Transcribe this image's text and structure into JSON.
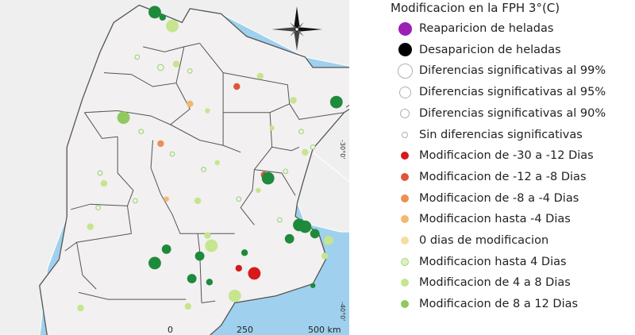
{
  "legend": {
    "title": "Modificacion en la FPH 3°(C)",
    "items": [
      {
        "label": "Reaparicion de heladas",
        "name": "reaparicion-heladas",
        "fill": "#9b20b4",
        "stroke": "#9b20b4",
        "size": 17
      },
      {
        "label": "Desaparicion de heladas",
        "name": "desaparicion-heladas",
        "fill": "#000000",
        "stroke": "#000000",
        "size": 17
      },
      {
        "label": "Diferencias significativas al 99%",
        "name": "dif-sig-99",
        "fill": "#ffffff",
        "stroke": "#b0b0b0",
        "size": 19
      },
      {
        "label": "Diferencias significativas al 95%",
        "name": "dif-sig-95",
        "fill": "#ffffff",
        "stroke": "#b0b0b0",
        "size": 15
      },
      {
        "label": "Diferencias significativas al 90%",
        "name": "dif-sig-90",
        "fill": "#ffffff",
        "stroke": "#b0b0b0",
        "size": 12
      },
      {
        "label": "Sin diferencias significativas",
        "name": "sin-diferencias",
        "fill": "#ffffff",
        "stroke": "#b0b0b0",
        "size": 8
      },
      {
        "label": "Modificacion de -30 a -12 Dias",
        "name": "mod-30-12",
        "fill": "#d7191c",
        "stroke": "#d7191c",
        "size": 10
      },
      {
        "label": "Modificacion de -12 a -8 Dias",
        "name": "mod-12-8",
        "fill": "#e0553a",
        "stroke": "#e0553a",
        "size": 10
      },
      {
        "label": "Modificacion de -8 a -4 Dias",
        "name": "mod-8-4",
        "fill": "#ec8f55",
        "stroke": "#ec8f55",
        "size": 10
      },
      {
        "label": "Modificacion hasta -4 Dias",
        "name": "mod-hasta-neg4",
        "fill": "#f2b870",
        "stroke": "#f2b870",
        "size": 10
      },
      {
        "label": "0 dias de modificacion",
        "name": "mod-0",
        "fill": "#f8dca2",
        "stroke": "#f8dca2",
        "size": 10
      },
      {
        "label": "Modificacion hasta 4 Dias",
        "name": "mod-hasta-4",
        "fill": "#ddf0bd",
        "stroke": "#a9d488",
        "size": 10
      },
      {
        "label": "Modificacion de 4 a 8 Dias",
        "name": "mod-4-8",
        "fill": "#c5e58e",
        "stroke": "#c5e58e",
        "size": 10
      },
      {
        "label": "Modificacion de 8 a 12 Dias",
        "name": "mod-8-12",
        "fill": "#8fc95f",
        "stroke": "#8fc95f",
        "size": 10
      }
    ]
  },
  "map": {
    "lat_labels": [
      "-30°0'",
      "-40°0'"
    ],
    "scale_labels": [
      "0",
      "250",
      "500 km"
    ]
  },
  "colors": {
    "sea": "#9fd1ee",
    "land": "#f2f0f0",
    "outside_land": "#efefef",
    "border": "#555555",
    "dark_green": "#1e8a3c"
  },
  "stations": [
    {
      "cat": "dark",
      "size": "l",
      "lon": -65.7,
      "lat": -22.2
    },
    {
      "cat": "c48",
      "size": "l",
      "lon": -64.8,
      "lat": -23.0
    },
    {
      "cat": "dark",
      "size": "s",
      "lon": -65.3,
      "lat": -22.5
    },
    {
      "cat": "c04",
      "size": "xs",
      "lon": -66.6,
      "lat": -24.8
    },
    {
      "cat": "c04",
      "size": "s",
      "lon": -65.4,
      "lat": -25.4
    },
    {
      "cat": "c48",
      "size": "s",
      "lon": -64.6,
      "lat": -25.2
    },
    {
      "cat": "c04",
      "size": "xs",
      "lon": -63.9,
      "lat": -25.6
    },
    {
      "cat": "m12_8",
      "size": "s",
      "lon": -61.5,
      "lat": -26.5
    },
    {
      "cat": "c48",
      "size": "s",
      "lon": -60.3,
      "lat": -25.9
    },
    {
      "cat": "dark",
      "size": "l",
      "lon": -54.6,
      "lat": -25.6
    },
    {
      "cat": "c48",
      "size": "s",
      "lon": -55.4,
      "lat": -26.0
    },
    {
      "cat": "dark",
      "size": "l",
      "lon": -56.4,
      "lat": -27.4
    },
    {
      "cat": "c48",
      "size": "s",
      "lon": -58.6,
      "lat": -27.3
    },
    {
      "cat": "c812",
      "size": "l",
      "lon": -67.3,
      "lat": -28.3
    },
    {
      "cat": "m4",
      "size": "s",
      "lon": -63.9,
      "lat": -27.5
    },
    {
      "cat": "c48",
      "size": "xs",
      "lon": -63.0,
      "lat": -27.9
    },
    {
      "cat": "c48",
      "size": "xs",
      "lon": -59.7,
      "lat": -28.9
    },
    {
      "cat": "c04",
      "size": "xs",
      "lon": -66.4,
      "lat": -29.1
    },
    {
      "cat": "m8_4",
      "size": "s",
      "lon": -65.4,
      "lat": -29.8
    },
    {
      "cat": "c04",
      "size": "xs",
      "lon": -64.8,
      "lat": -30.4
    },
    {
      "cat": "c48",
      "size": "s",
      "lon": -58.0,
      "lat": -30.3
    },
    {
      "cat": "c04",
      "size": "xs",
      "lon": -57.6,
      "lat": -30.0
    },
    {
      "cat": "c04",
      "size": "xs",
      "lon": -58.2,
      "lat": -29.1
    },
    {
      "cat": "c48",
      "size": "xs",
      "lon": -62.5,
      "lat": -30.9
    },
    {
      "cat": "c04",
      "size": "xs",
      "lon": -63.2,
      "lat": -31.3
    },
    {
      "cat": "m12_8",
      "size": "s",
      "lon": -60.1,
      "lat": -31.6
    },
    {
      "cat": "dark",
      "size": "l",
      "lon": -59.9,
      "lat": -31.8
    },
    {
      "cat": "c04",
      "size": "xs",
      "lon": -59.0,
      "lat": -31.4
    },
    {
      "cat": "c04",
      "size": "xs",
      "lon": -68.5,
      "lat": -31.5
    },
    {
      "cat": "c48",
      "size": "s",
      "lon": -68.3,
      "lat": -32.1
    },
    {
      "cat": "c04",
      "size": "xs",
      "lon": -66.7,
      "lat": -33.1
    },
    {
      "cat": "m4",
      "size": "xs",
      "lon": -65.1,
      "lat": -33.0
    },
    {
      "cat": "c48",
      "size": "s",
      "lon": -63.5,
      "lat": -33.1
    },
    {
      "cat": "c04",
      "size": "xs",
      "lon": -61.4,
      "lat": -33.0
    },
    {
      "cat": "c48",
      "size": "xs",
      "lon": -60.4,
      "lat": -32.5
    },
    {
      "cat": "c04",
      "size": "xs",
      "lon": -68.6,
      "lat": -33.5
    },
    {
      "cat": "c48",
      "size": "s",
      "lon": -69.0,
      "lat": -34.6
    },
    {
      "cat": "c48",
      "size": "s",
      "lon": -63.0,
      "lat": -35.1
    },
    {
      "cat": "dark",
      "size": "l",
      "lon": -58.3,
      "lat": -34.5
    },
    {
      "cat": "dark",
      "size": "l",
      "lon": -58.0,
      "lat": -34.6
    },
    {
      "cat": "c04",
      "size": "xs",
      "lon": -59.3,
      "lat": -34.2
    },
    {
      "cat": "dark",
      "size": "m",
      "lon": -57.5,
      "lat": -35.0
    },
    {
      "cat": "dark",
      "size": "m",
      "lon": -58.8,
      "lat": -35.3
    },
    {
      "cat": "dark",
      "size": "s",
      "lon": -61.1,
      "lat": -36.1
    },
    {
      "cat": "c48",
      "size": "m",
      "lon": -56.8,
      "lat": -35.4
    },
    {
      "cat": "c48",
      "size": "l",
      "lon": -62.8,
      "lat": -35.7
    },
    {
      "cat": "dark",
      "size": "m",
      "lon": -65.1,
      "lat": -35.9
    },
    {
      "cat": "dark",
      "size": "m",
      "lon": -63.4,
      "lat": -36.3
    },
    {
      "cat": "c48",
      "size": "s",
      "lon": -57.0,
      "lat": -36.3
    },
    {
      "cat": "dark",
      "size": "l",
      "lon": -65.7,
      "lat": -36.7
    },
    {
      "cat": "m30_12",
      "size": "s",
      "lon": -61.4,
      "lat": -37.0
    },
    {
      "cat": "m30_12",
      "size": "l",
      "lon": -60.6,
      "lat": -37.3
    },
    {
      "cat": "dark",
      "size": "m",
      "lon": -63.8,
      "lat": -37.6
    },
    {
      "cat": "dark",
      "size": "s",
      "lon": -62.9,
      "lat": -37.8
    },
    {
      "cat": "dark",
      "size": "xs",
      "lon": -57.6,
      "lat": -38.0
    },
    {
      "cat": "c48",
      "size": "l",
      "lon": -61.6,
      "lat": -38.6
    },
    {
      "cat": "c48",
      "size": "s",
      "lon": -64.0,
      "lat": -39.2
    },
    {
      "cat": "c48",
      "size": "s",
      "lon": -69.5,
      "lat": -39.3
    }
  ]
}
